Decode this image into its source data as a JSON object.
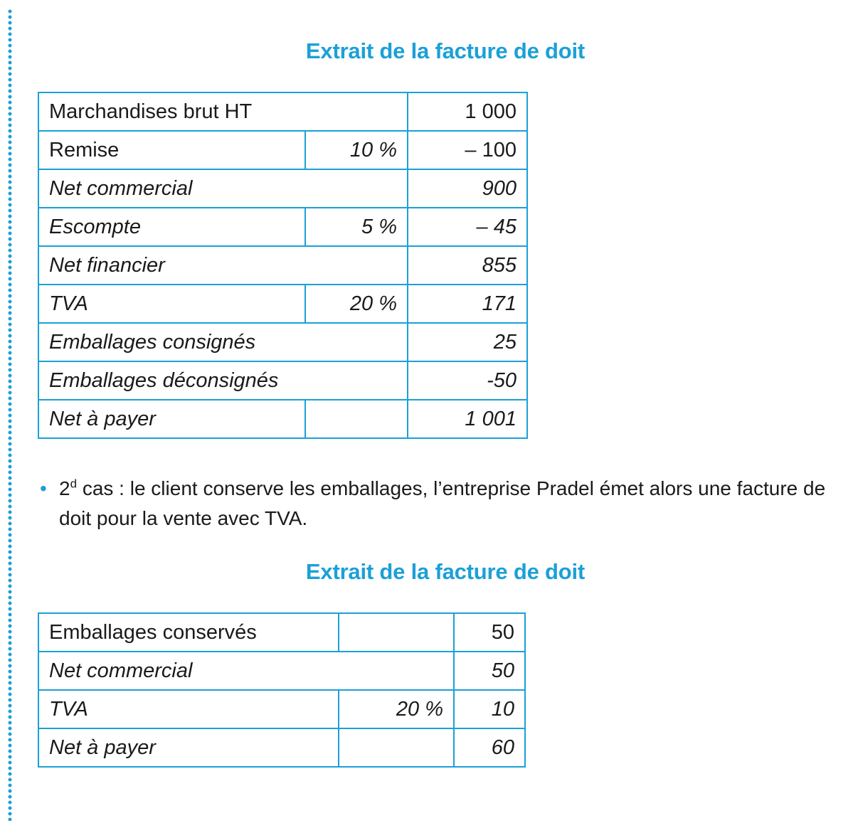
{
  "accent_color": "#1ba0d7",
  "section1": {
    "title": "Extrait de la facture de doit",
    "rows": [
      {
        "label": "Marchandises brut HT",
        "rate": "",
        "amount": "1 000"
      },
      {
        "label": "Remise",
        "rate": "10 %",
        "amount": "– 100"
      },
      {
        "label": "Net commercial",
        "rate": "",
        "amount": "900"
      },
      {
        "label": "Escompte",
        "rate": "5 %",
        "amount": "– 45"
      },
      {
        "label": "Net financier",
        "rate": "",
        "amount": "855"
      },
      {
        "label": "TVA",
        "rate": "20 %",
        "amount": "171"
      },
      {
        "label": "Emballages consignés",
        "rate": "",
        "amount": "25"
      },
      {
        "label": "Emballages déconsignés",
        "rate": "",
        "amount": "-50"
      },
      {
        "label": "Net à payer",
        "rate": "",
        "amount": "1 001"
      }
    ]
  },
  "paragraph": {
    "bullet": "•",
    "ordinal_number": "2",
    "ordinal_suffix": "d",
    "text": " cas : le client conserve les emballages, l’entreprise Pradel émet alors une facture de doit pour la vente avec TVA."
  },
  "section2": {
    "title": "Extrait de la facture de doit",
    "rows": [
      {
        "label": "Emballages conservés",
        "rate": "",
        "amount": "50"
      },
      {
        "label": "Net commercial",
        "rate": "",
        "amount": "50"
      },
      {
        "label": "TVA",
        "rate": "20 %",
        "amount": "10"
      },
      {
        "label": "Net à payer",
        "rate": "",
        "amount": "60"
      }
    ]
  }
}
